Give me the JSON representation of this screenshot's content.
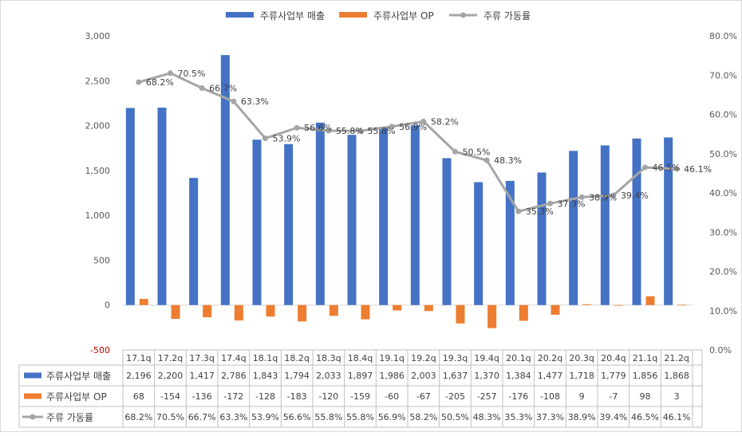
{
  "chart_data": {
    "type": "bar",
    "categories": [
      "17.1q",
      "17.2q",
      "17.3q",
      "17.4q",
      "18.1q",
      "18.2q",
      "18.3q",
      "18.4q",
      "19.1q",
      "19.2q",
      "19.3q",
      "19.4q",
      "20.1q",
      "20.2q",
      "20.3q",
      "20.4q",
      "21.1q",
      "21.2q"
    ],
    "series": [
      {
        "name": "주류사업부 매출",
        "type": "bar",
        "axis": "left",
        "color": "#4472C4",
        "values": [
          2196,
          2200,
          1417,
          2786,
          1843,
          1794,
          2033,
          1897,
          1986,
          2003,
          1637,
          1370,
          1384,
          1477,
          1718,
          1779,
          1856,
          1868
        ],
        "table_labels": [
          "2,196",
          "2,200",
          "1,417",
          "2,786",
          "1,843",
          "1,794",
          "2,033",
          "1,897",
          "1,986",
          "2,003",
          "1,637",
          "1,370",
          "1,384",
          "1,477",
          "1,718",
          "1,779",
          "1,856",
          "1,868"
        ]
      },
      {
        "name": "주류사업부 OP",
        "type": "bar",
        "axis": "left",
        "color": "#ED7D31",
        "values": [
          68,
          -154,
          -136,
          -172,
          -128,
          -183,
          -120,
          -159,
          -60,
          -67,
          -205,
          -257,
          -176,
          -108,
          9,
          -7,
          98,
          3
        ],
        "table_labels": [
          "68",
          "-154",
          "-136",
          "-172",
          "-128",
          "-183",
          "-120",
          "-159",
          "-60",
          "-67",
          "-205",
          "-257",
          "-176",
          "-108",
          "9",
          "-7",
          "98",
          "3"
        ]
      },
      {
        "name": "주류 가동률",
        "type": "line",
        "axis": "right",
        "color": "#A5A5A5",
        "values": [
          68.2,
          70.5,
          66.7,
          63.3,
          53.9,
          56.6,
          55.8,
          55.8,
          56.9,
          58.2,
          50.5,
          48.3,
          35.3,
          37.3,
          38.9,
          39.4,
          46.5,
          46.1
        ],
        "labels": [
          "68.2%",
          "70.5%",
          "66.7%",
          "63.3%",
          "53.9%",
          "56.6%",
          "55.8%",
          "55.8%",
          "56.9%",
          "58.2%",
          "50.5%",
          "48.3%",
          "35.3%",
          "37.3%",
          "38.9%",
          "39.4%",
          "46.5%",
          "46.1%"
        ]
      }
    ],
    "y_left": {
      "ylim": [
        -500,
        3000
      ],
      "ticks": [
        "-500",
        "0",
        "500",
        "1,000",
        "1,500",
        "2,000",
        "2,500",
        "3,000"
      ]
    },
    "y_right": {
      "ylim": [
        0,
        80
      ],
      "ticks": [
        "0.0%",
        "10.0%",
        "20.0%",
        "30.0%",
        "40.0%",
        "50.0%",
        "60.0%",
        "70.0%",
        "80.0%"
      ]
    },
    "legend": "top",
    "grid": false,
    "data_table": true
  }
}
